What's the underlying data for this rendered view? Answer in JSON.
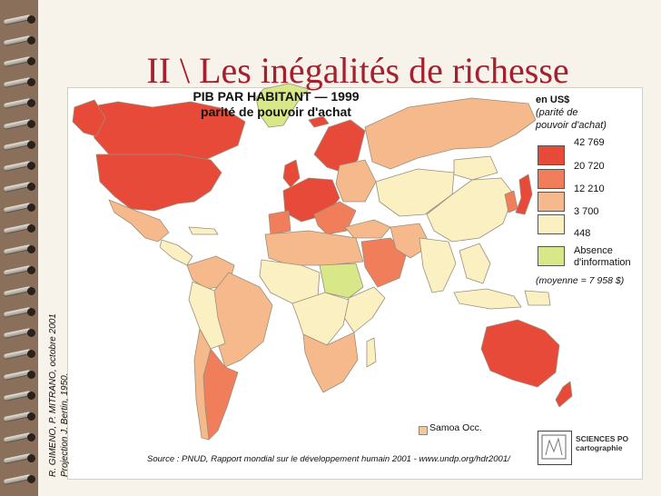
{
  "slide": {
    "title": "II \\ Les inégalités  de richesse"
  },
  "map": {
    "title_line1": "PIB PAR HABITANT — 1999",
    "title_line2": "parité de pouvoir d'achat",
    "credit_line1": "R. GIMENO, P. MITRANO, octobre 2001",
    "credit_line2": "Projection J. Bertin,  1950.",
    "source": "Source : PNUD, Rapport mondial sur le développement humain 2001 - www.undp.org/hdr2001/",
    "samoa_label": "Samoa Occ.",
    "logo_line1": "SCIENCES PO",
    "logo_line2": "cartographie",
    "legend": {
      "unit": "en US$",
      "ppp_line1": "(parité de",
      "ppp_line2": "pouvoir d'achat)",
      "values": [
        "42 769",
        "20 720",
        "12 210",
        "3 700",
        "448"
      ],
      "no_info_line1": "Absence",
      "no_info_line2": "d'information",
      "mean": "(moyenne = 7 958 $)"
    },
    "colors": {
      "class1": "#e84a3a",
      "class2": "#f07e5b",
      "class3": "#f6b98b",
      "class4": "#fbf0c2",
      "no_info": "#d8e889",
      "border": "#9a8f7c"
    }
  }
}
